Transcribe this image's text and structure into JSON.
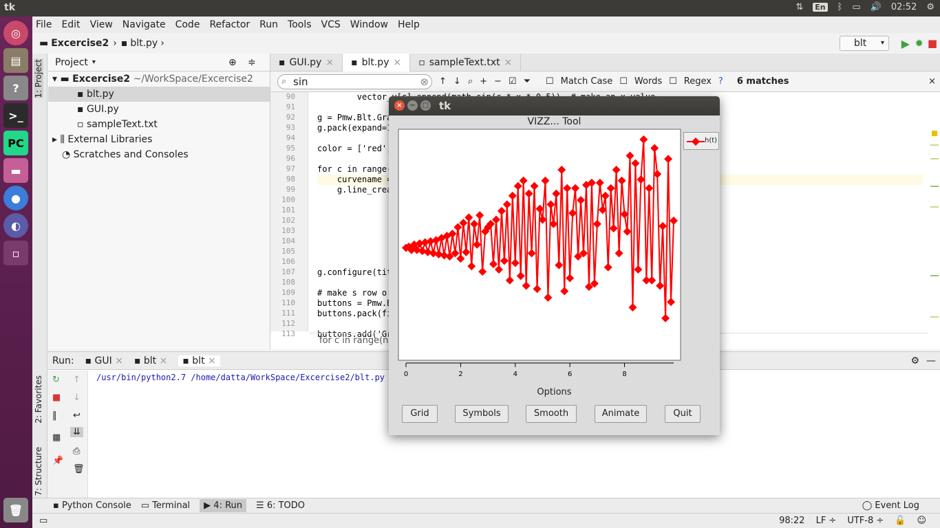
{
  "topbar": {
    "title": "tk",
    "lang": "En",
    "time": "02:52"
  },
  "menu": [
    "File",
    "Edit",
    "View",
    "Navigate",
    "Code",
    "Refactor",
    "Run",
    "Tools",
    "VCS",
    "Window",
    "Help"
  ],
  "nav": {
    "project": "Excercise2",
    "file": "blt.py",
    "run_config": "blt"
  },
  "side_tabs": {
    "project": "1: Project",
    "favorites": "2: Favorites",
    "structure": "7: Structure"
  },
  "project": {
    "header": "Project",
    "root": "Excercise2",
    "root_path": "~/WorkSpace/Excercise2",
    "files": [
      "blt.py",
      "GUI.py",
      "sampleText.txt"
    ],
    "ext": "External Libraries",
    "scratch": "Scratches and Consoles"
  },
  "tabs": [
    "GUI.py",
    "blt.py",
    "sampleText.txt"
  ],
  "find": {
    "query": "sin",
    "match_case": "Match Case",
    "words": "Words",
    "regex": "Regex",
    "help": "?",
    "matches": "6 matches"
  },
  "lines": [
    "90",
    "91",
    "92",
    "93",
    "94",
    "95",
    "96",
    "97",
    "98",
    "99",
    "100",
    "101",
    "102",
    "103",
    "104",
    "105",
    "106",
    "107",
    "108",
    "109",
    "110",
    "111",
    "112",
    "113"
  ],
  "code": [
    "        vector_y[c].append(math.sin(c * x * 0.5))  # make an x value",
    "",
    "g = Pmw.Blt.Gra",
    "g.pack(expand=1",
    "",
    "color = ['red',",
    "",
    "for c in range(",
    "    curvename =",
    "    g.line_crea",
    "",
    "",
    "",
    "",
    "",
    "",
    "",
    "g.configure(tit",
    "",
    "# make s row o",
    "buttons = Pmw.B",
    "buttons.pack(fi",
    "",
    "buttons.add('Gr"
  ],
  "code_crumb": "for c in range(n",
  "run": {
    "label": "Run:",
    "tabs": [
      "GUI",
      "blt",
      "blt"
    ],
    "output": "/usr/bin/python2.7 /home/datta/WorkSpace/Excercise2/blt.py"
  },
  "bottom_tabs": [
    "Python Console",
    "Terminal",
    "4: Run",
    "6: TODO"
  ],
  "event_log": "Event Log",
  "status": {
    "pos": "98:22",
    "lf": "LF ÷",
    "enc": "UTF-8 ÷"
  },
  "tk": {
    "title": "tk",
    "graph_title": "VIZZ... Tool",
    "legend": "h(t)",
    "options_label": "Options",
    "buttons": [
      "Grid",
      "Symbols",
      "Smooth",
      "Animate",
      "Quit"
    ]
  },
  "chart_data": {
    "type": "line",
    "title": "VIZZ... Tool",
    "xlim": [
      0,
      9.8
    ],
    "ylim": [
      -1.0,
      1.05
    ],
    "xticks": [
      "0",
      "2",
      "4",
      "6",
      "8"
    ],
    "series": [
      {
        "name": "h(t)",
        "color": "#ff0000",
        "marker": "diamond",
        "x": [
          0.0,
          0.1,
          0.2,
          0.3,
          0.4,
          0.5,
          0.6,
          0.7,
          0.8,
          0.9,
          1.0,
          1.1,
          1.2,
          1.3,
          1.4,
          1.5,
          1.6,
          1.7,
          1.8,
          1.9,
          2.0,
          2.1,
          2.2,
          2.3,
          2.4,
          2.5,
          2.6,
          2.7,
          2.8,
          2.9,
          3.0,
          3.1,
          3.2,
          3.3,
          3.4,
          3.5,
          3.6,
          3.7,
          3.8,
          3.9,
          4.0,
          4.1,
          4.2,
          4.3,
          4.4,
          4.5,
          4.6,
          4.7,
          4.8,
          4.9,
          5.0,
          5.1,
          5.2,
          5.3,
          5.4,
          5.5,
          5.6,
          5.7,
          5.8,
          5.9,
          6.0,
          6.1,
          6.2,
          6.3,
          6.4,
          6.5,
          6.6,
          6.7,
          6.8,
          6.9,
          7.0,
          7.1,
          7.2,
          7.3,
          7.4,
          7.5,
          7.6,
          7.7,
          7.8,
          7.9,
          8.0,
          8.1,
          8.2,
          8.3,
          8.4,
          8.5,
          8.6,
          8.7,
          8.8,
          8.9,
          9.0,
          9.1,
          9.2,
          9.3,
          9.4,
          9.5,
          9.6,
          9.7,
          9.8
        ],
        "y": [
          0.0,
          0.01,
          -0.02,
          0.03,
          -0.02,
          0.04,
          -0.03,
          0.05,
          -0.04,
          0.06,
          -0.05,
          0.07,
          -0.06,
          0.09,
          -0.07,
          0.11,
          -0.08,
          0.13,
          -0.05,
          0.19,
          -0.1,
          0.23,
          -0.04,
          0.28,
          -0.17,
          0.22,
          0.03,
          0.3,
          -0.22,
          0.15,
          0.19,
          0.22,
          -0.15,
          0.26,
          -0.2,
          0.34,
          -0.12,
          0.4,
          -0.3,
          0.48,
          -0.14,
          0.57,
          -0.26,
          0.62,
          -0.35,
          0.5,
          -0.05,
          0.57,
          -0.38,
          0.36,
          0.26,
          0.62,
          -0.46,
          0.4,
          0.22,
          0.5,
          -0.16,
          0.72,
          -0.4,
          0.55,
          -0.28,
          0.32,
          0.55,
          -0.08,
          0.44,
          -0.05,
          0.58,
          -0.36,
          0.6,
          -0.33,
          0.22,
          0.6,
          0.35,
          0.48,
          -0.18,
          0.55,
          0.18,
          0.72,
          -0.05,
          0.62,
          0.31,
          0.15,
          0.85,
          -0.55,
          0.78,
          -0.2,
          0.63,
          1.0,
          -0.3,
          0.55,
          -0.3,
          0.92,
          0.68,
          -0.35,
          0.2,
          -0.65,
          0.82,
          -0.5,
          0.25
        ]
      }
    ]
  }
}
